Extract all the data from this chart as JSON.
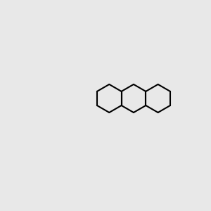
{
  "bg": "#e8e8e8",
  "bond_lw": 1.5,
  "font_size": 7.5,
  "colors": {
    "C": "#000000",
    "N": "#0000ee",
    "O": "#dd0000",
    "S": "#bbbb00",
    "Cl": "#22bb00",
    "H": "#555555"
  },
  "figsize": [
    3.0,
    3.0
  ],
  "dpi": 100
}
